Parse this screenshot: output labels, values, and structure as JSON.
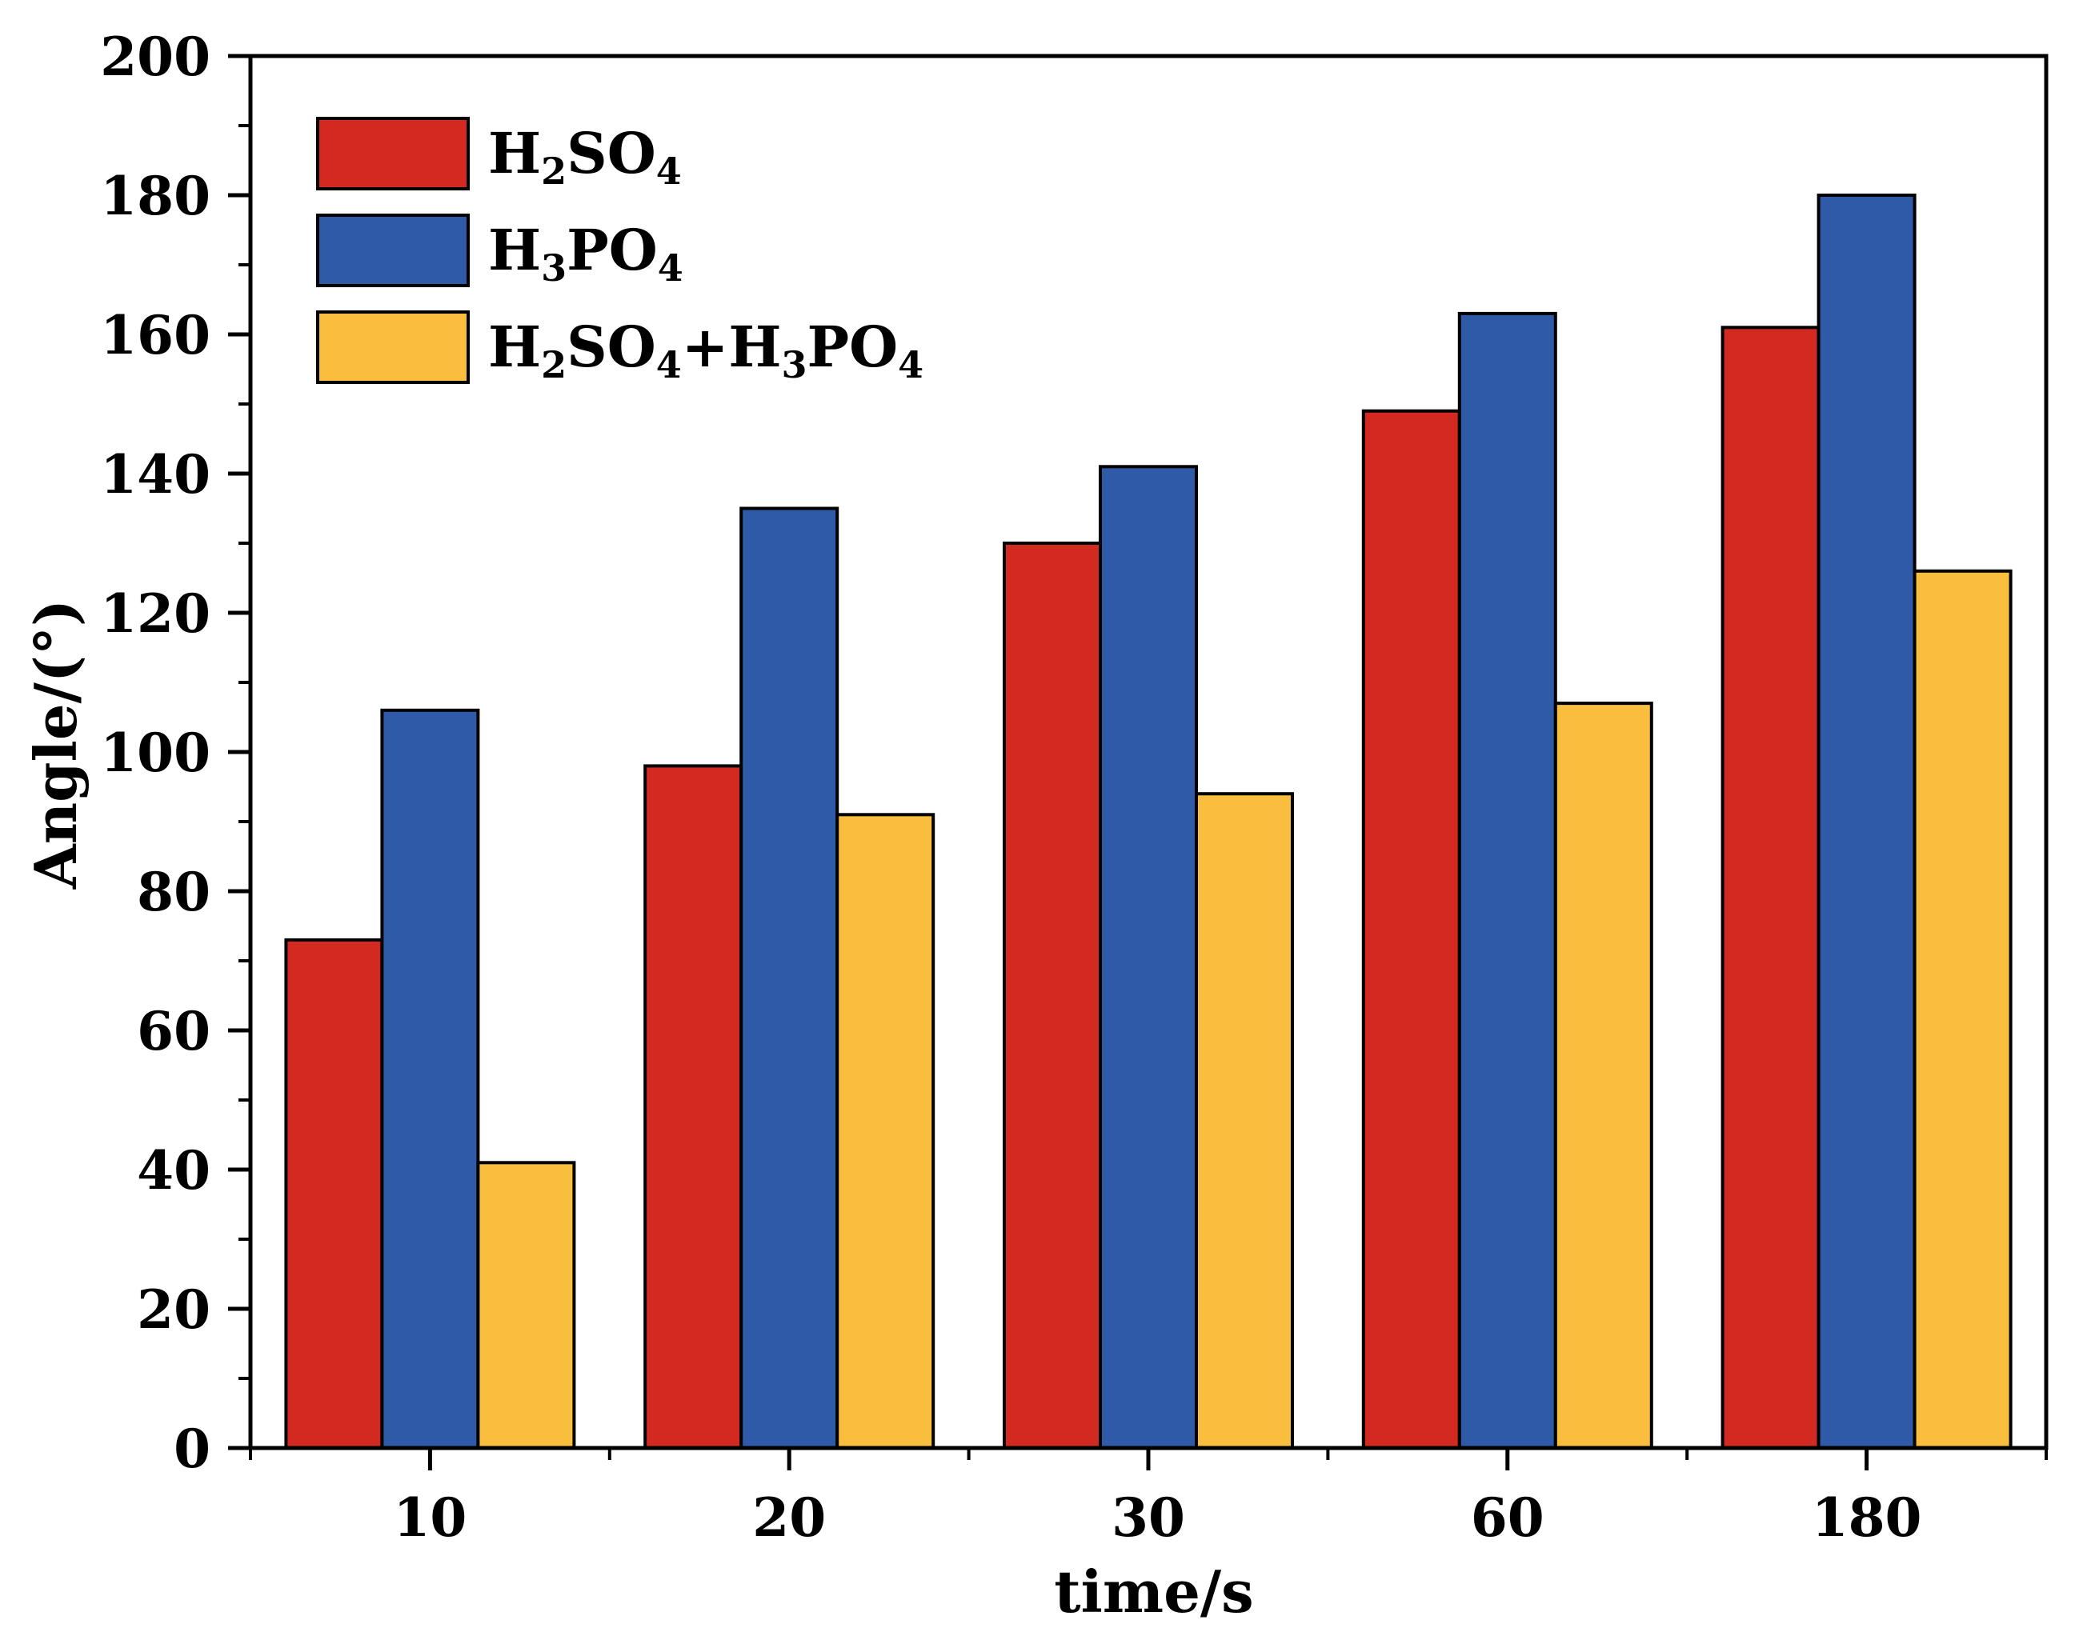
{
  "chart_data": {
    "type": "bar",
    "title": "",
    "xlabel": "time/s",
    "ylabel": "Angle/(°)",
    "categories": [
      "10",
      "20",
      "30",
      "60",
      "180"
    ],
    "ylim": [
      0,
      200
    ],
    "yticks": [
      "0",
      "20",
      "40",
      "60",
      "80",
      "100",
      "120",
      "140",
      "160",
      "180",
      "200"
    ],
    "grid": false,
    "legend_position": "top-left",
    "series": [
      {
        "name": "H2SO4",
        "label_parts": [
          [
            "H",
            false
          ],
          [
            "2",
            true
          ],
          [
            "SO",
            false
          ],
          [
            "4",
            true
          ]
        ],
        "color": "#D22A20",
        "values": [
          73,
          98,
          130,
          149,
          161
        ]
      },
      {
        "name": "H3PO4",
        "label_parts": [
          [
            "H",
            false
          ],
          [
            "3",
            true
          ],
          [
            "PO",
            false
          ],
          [
            "4",
            true
          ]
        ],
        "color": "#2E5AA8",
        "values": [
          106,
          135,
          141,
          163,
          180
        ]
      },
      {
        "name": "H2SO4+H3PO4",
        "label_parts": [
          [
            "H",
            false
          ],
          [
            "2",
            true
          ],
          [
            "SO",
            false
          ],
          [
            "4",
            true
          ],
          [
            "+H",
            false
          ],
          [
            "3",
            true
          ],
          [
            "PO",
            false
          ],
          [
            "4",
            true
          ]
        ],
        "color": "#F9BE3E",
        "values": [
          41,
          91,
          94,
          107,
          126
        ]
      }
    ]
  }
}
